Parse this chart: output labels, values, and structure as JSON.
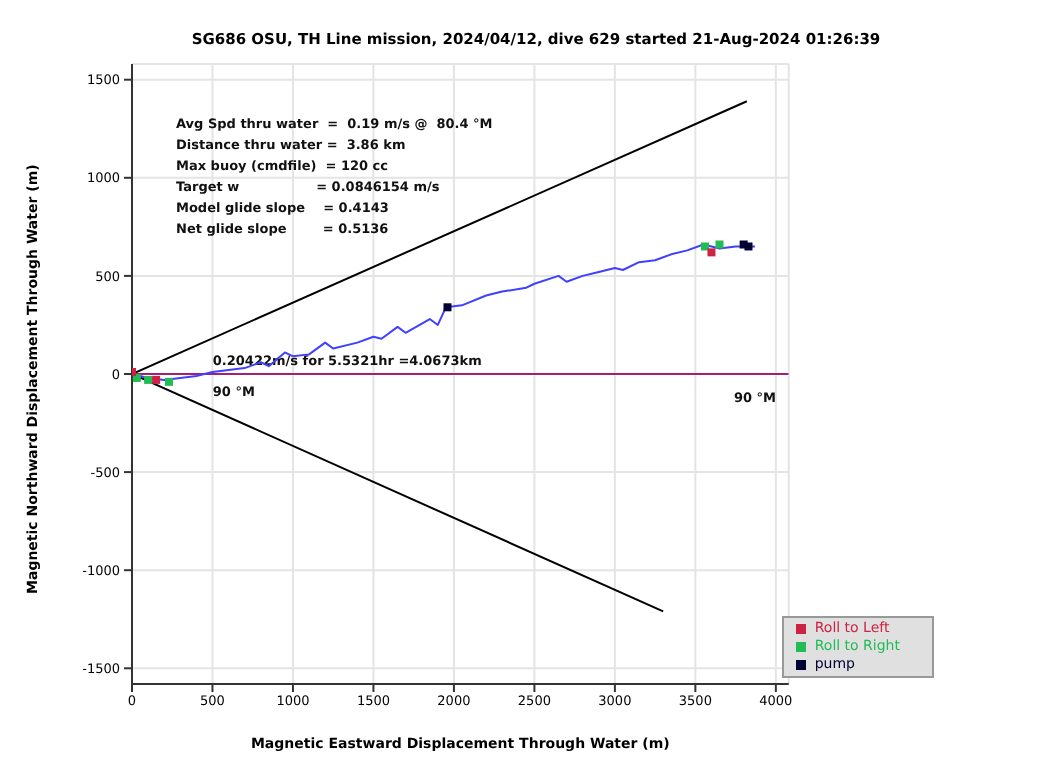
{
  "chart_data": {
    "type": "line",
    "title": "SG686 OSU, TH Line mission, 2024/04/12, dive 629 started 21-Aug-2024 01:26:39",
    "xlabel": "Magnetic Eastward Displacement Through Water (m)",
    "ylabel": "Magnetic Northward Displacement Through Water (m)",
    "xlim": [
      0,
      4080
    ],
    "ylim": [
      -1580,
      1580
    ],
    "xticks": [
      0,
      500,
      1000,
      1500,
      2000,
      2500,
      3000,
      3500,
      4000
    ],
    "yticks": [
      -1500,
      -1000,
      -500,
      0,
      500,
      1000,
      1500
    ],
    "grid": true,
    "legend": "bottom right",
    "annotations": [
      "Avg Spd thru water  =  0.19 m/s @  80.4 °M",
      "Distance thru water =  3.86 km",
      "Max buoy (cmdfile)  = 120 cc",
      "Target w                 = 0.0846154 m/s",
      "Model glide slope    = 0.4143",
      "Net glide slope        = 0.5136",
      "0.20422m/s for 5.5321hr =4.0673km",
      "90 °M",
      "90 °M"
    ],
    "series": [
      {
        "color": "#000000",
        "x": [
          0,
          3820
        ],
        "values": [
          0,
          1390
        ]
      },
      {
        "color": "#000000",
        "x": [
          0,
          3300
        ],
        "values": [
          0,
          -1210
        ]
      },
      {
        "color": "#a0207a",
        "x": [
          0,
          4080
        ],
        "values": [
          0,
          0
        ]
      },
      {
        "color": "#4040ff",
        "x": [
          0,
          100,
          200,
          300,
          400,
          500,
          600,
          700,
          800,
          850,
          950,
          1000,
          1100,
          1200,
          1250,
          1400,
          1500,
          1550,
          1650,
          1700,
          1850,
          1900,
          1950,
          2050,
          2200,
          2300,
          2450,
          2500,
          2650,
          2700,
          2800,
          2900,
          3000,
          3050,
          3150,
          3250,
          3350,
          3450,
          3550,
          3650,
          3750,
          3870
        ],
        "values": [
          0,
          -20,
          -30,
          -20,
          -10,
          10,
          20,
          30,
          60,
          40,
          110,
          90,
          100,
          160,
          130,
          160,
          190,
          180,
          240,
          210,
          280,
          250,
          340,
          350,
          400,
          420,
          440,
          460,
          500,
          470,
          500,
          520,
          540,
          530,
          570,
          580,
          610,
          630,
          660,
          640,
          650,
          650
        ]
      },
      {
        "type": "scatter",
        "name": "Roll to Right",
        "color": "#22bb55",
        "x": [
          30,
          100,
          230,
          3560,
          3650
        ],
        "values": [
          -20,
          -30,
          -40,
          650,
          660
        ]
      },
      {
        "type": "scatter",
        "name": "Roll to Left",
        "color": "#cc2244",
        "x": [
          0,
          150,
          3600
        ],
        "values": [
          10,
          -30,
          620
        ]
      },
      {
        "type": "scatter",
        "name": "pump",
        "color": "#000033",
        "x": [
          1960,
          3800,
          3830
        ],
        "values": [
          340,
          660,
          650
        ]
      }
    ]
  }
}
